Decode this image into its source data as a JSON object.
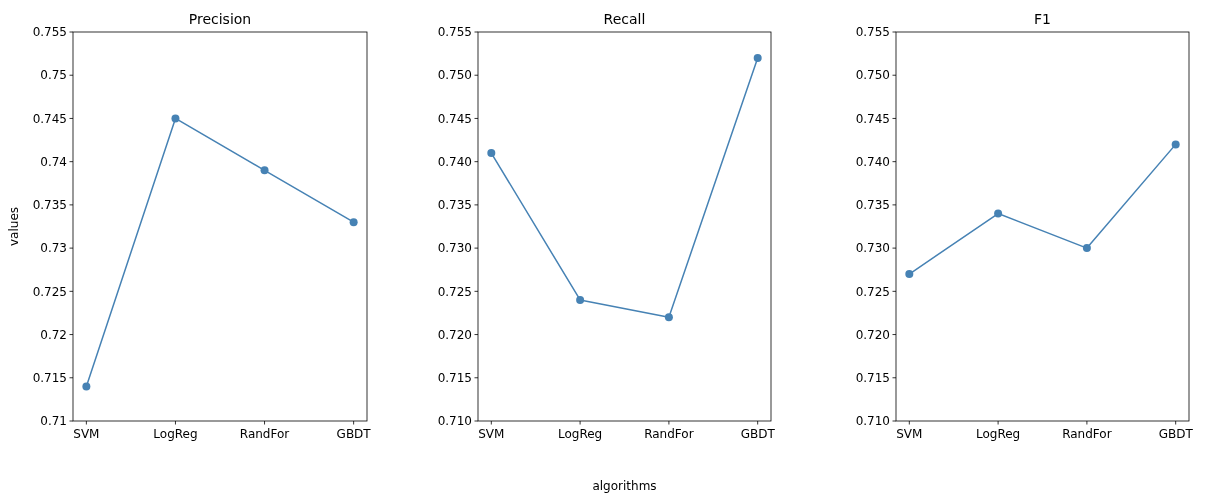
{
  "chart_data": [
    {
      "type": "line",
      "title": "Precision",
      "ylabel": "values",
      "categories": [
        "SVM",
        "LogReg",
        "RandFor",
        "GBDT"
      ],
      "series": [
        {
          "color": "#4682b4",
          "values": [
            0.714,
            0.745,
            0.739,
            0.733
          ]
        }
      ],
      "ylim": [
        0.71,
        0.755
      ],
      "yticks": [
        0.71,
        0.715,
        0.72,
        0.725,
        0.73,
        0.735,
        0.74,
        0.745,
        0.75,
        0.755
      ],
      "marker": "circle",
      "grid": false
    },
    {
      "type": "line",
      "title": "Recall",
      "xlabel": "algorithms",
      "categories": [
        "SVM",
        "LogReg",
        "RandFor",
        "GBDT"
      ],
      "series": [
        {
          "color": "#4682b4",
          "values": [
            0.741,
            0.724,
            0.722,
            0.752
          ]
        }
      ],
      "ylim": [
        0.71,
        0.755
      ],
      "yticks": [
        {
          "value": 0.71,
          "label": "0.710"
        },
        0.715,
        {
          "value": 0.72,
          "label": "0.720"
        },
        0.725,
        {
          "value": 0.73,
          "label": "0.730"
        },
        0.735,
        {
          "value": 0.74,
          "label": "0.740"
        },
        0.745,
        {
          "value": 0.75,
          "label": "0.750"
        },
        0.755
      ],
      "marker": "circle",
      "grid": false
    },
    {
      "type": "line",
      "title": "F1",
      "categories": [
        "SVM",
        "LogReg",
        "RandFor",
        "GBDT"
      ],
      "series": [
        {
          "color": "#4682b4",
          "values": [
            0.727,
            0.734,
            0.73,
            0.742
          ]
        }
      ],
      "ylim": [
        0.71,
        0.755
      ],
      "yticks": [
        {
          "value": 0.71,
          "label": "0.710"
        },
        0.715,
        {
          "value": 0.72,
          "label": "0.720"
        },
        0.725,
        {
          "value": 0.73,
          "label": "0.730"
        },
        0.735,
        {
          "value": 0.74,
          "label": "0.740"
        },
        0.745,
        {
          "value": 0.75,
          "label": "0.750"
        },
        0.755
      ],
      "marker": "circle",
      "grid": false
    }
  ]
}
